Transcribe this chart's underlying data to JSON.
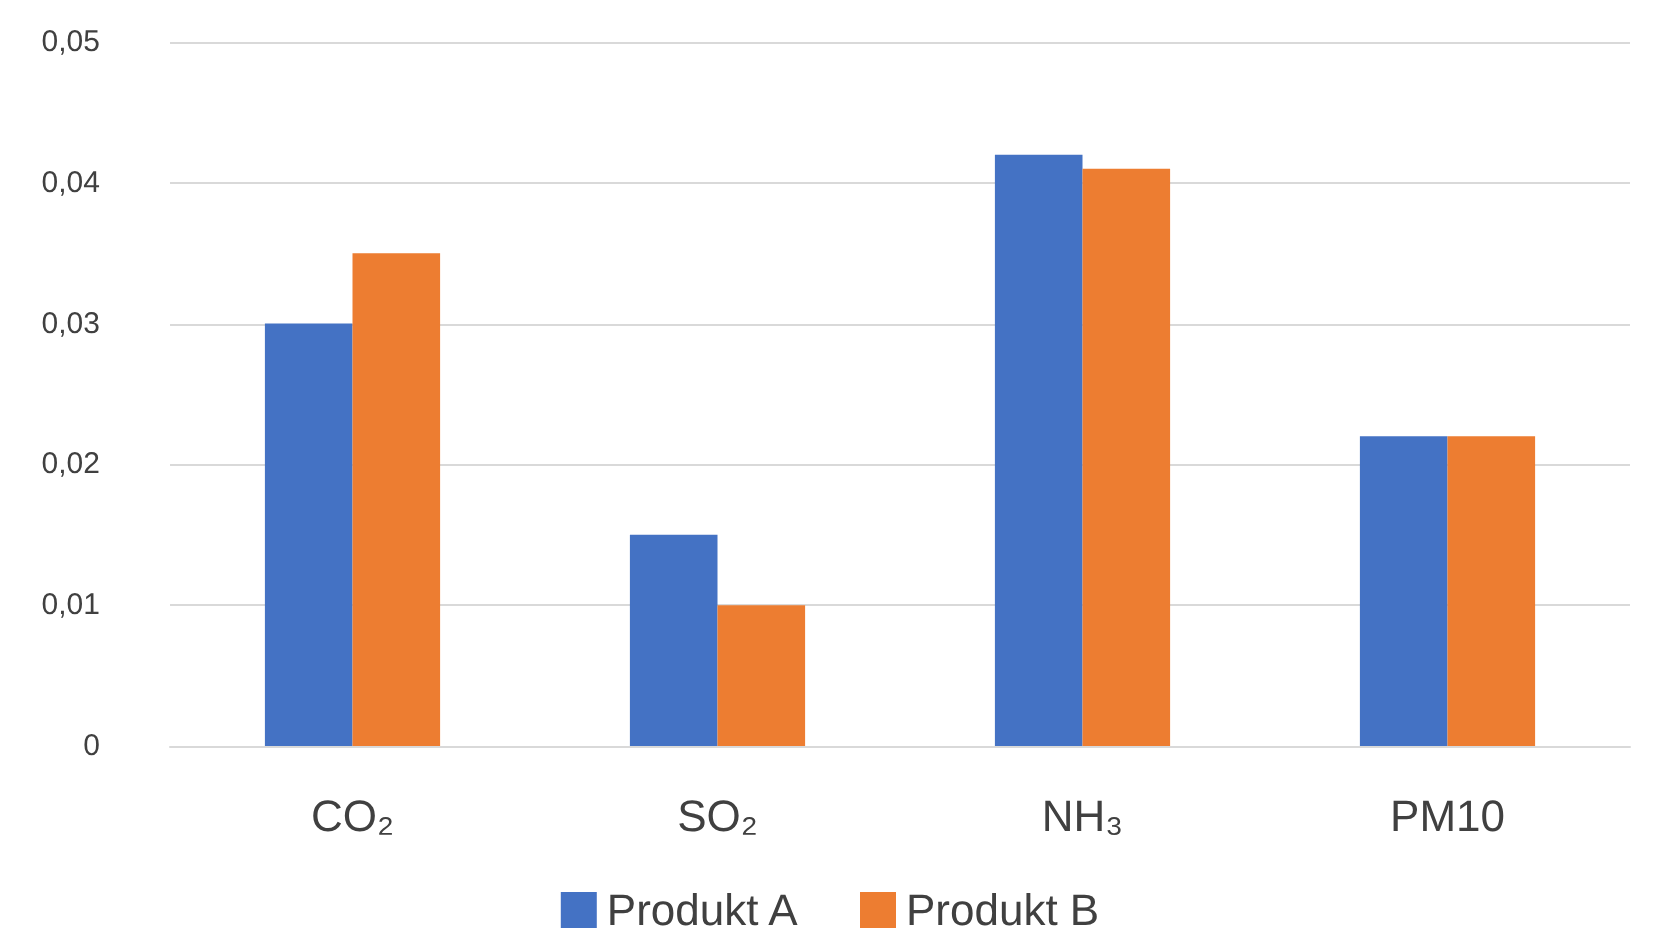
{
  "chart_data": {
    "type": "bar",
    "categories": [
      "CO₂",
      "SO₂",
      "NH₃",
      "PM10"
    ],
    "series": [
      {
        "name": "Produkt A",
        "color": "#4472c4",
        "values": [
          0.03,
          0.015,
          0.042,
          0.022
        ]
      },
      {
        "name": "Produkt B",
        "color": "#ed7d31",
        "values": [
          0.035,
          0.01,
          0.041,
          0.022
        ]
      }
    ],
    "ylim": [
      0,
      0.05
    ],
    "yticks": [
      0,
      {
        "value": 0.01,
        "label": "0,01"
      },
      {
        "value": 0.02,
        "label": "0,02"
      },
      {
        "value": 0.03,
        "label": "0,03"
      },
      {
        "value": 0.04,
        "label": "0,04"
      },
      {
        "value": 0.05,
        "label": "0,05"
      }
    ],
    "grid": "y",
    "legend": "bottom"
  }
}
